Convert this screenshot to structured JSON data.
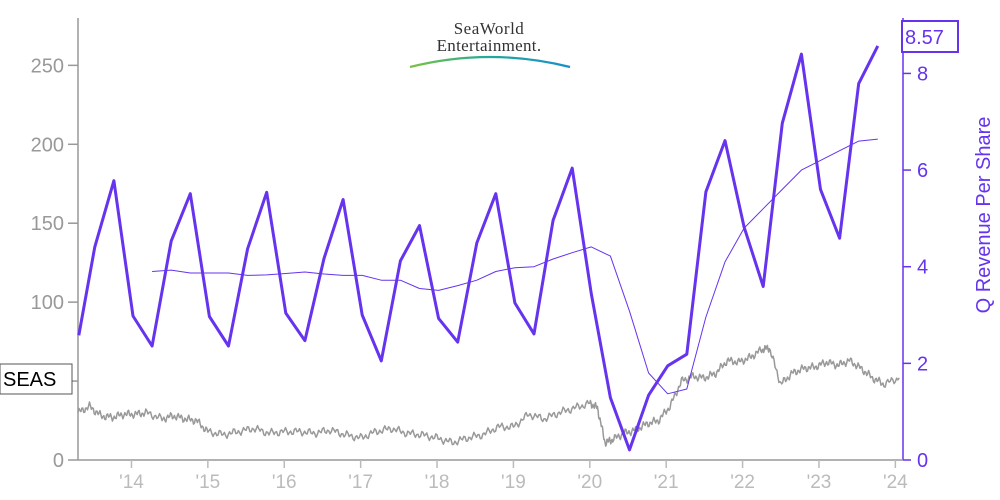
{
  "logo": {
    "line1": "SeaWorld",
    "line2": "Entertainment."
  },
  "ticker_label": "SEAS",
  "last_value_label": "8.57",
  "colors": {
    "price": "#999999",
    "revenue": "#6633ee",
    "axis_left": "#999999",
    "x_ticks": "#bbbbbb"
  },
  "chart_data": {
    "type": "line",
    "xlabel": "",
    "ylabel_left": "",
    "ylabel_right": "Q Revenue Per Share",
    "x_tick_labels": [
      "'14",
      "'15",
      "'16",
      "'17",
      "'18",
      "'19",
      "'20",
      "'21",
      "'22",
      "'23",
      "'24"
    ],
    "x_range": [
      2013.3,
      2024.1
    ],
    "y_left": {
      "ticks": [
        0,
        50,
        100,
        150,
        200,
        250
      ],
      "tick_labels": [
        "0",
        "",
        "100",
        "150",
        "200",
        "250"
      ],
      "range": [
        0,
        280
      ]
    },
    "y_right": {
      "ticks": [
        0,
        2,
        4,
        6,
        8
      ],
      "range": [
        0,
        9.147
      ]
    },
    "series": [
      {
        "name": "",
        "axis": "right",
        "style": "thick",
        "x": [
          2013.31,
          2013.52,
          2013.77,
          2014.02,
          2014.27,
          2014.52,
          2014.77,
          2015.02,
          2015.27,
          2015.52,
          2015.77,
          2016.02,
          2016.27,
          2016.52,
          2016.77,
          2017.02,
          2017.27,
          2017.52,
          2017.77,
          2018.02,
          2018.27,
          2018.52,
          2018.77,
          2019.02,
          2019.27,
          2019.52,
          2019.77,
          2020.02,
          2020.27,
          2020.52,
          2020.77,
          2021.02,
          2021.27,
          2021.52,
          2021.77,
          2022.02,
          2022.27,
          2022.52,
          2022.77,
          2023.02,
          2023.27,
          2023.52,
          2023.77
        ],
        "values": [
          2.58,
          4.41,
          5.78,
          2.98,
          2.36,
          4.53,
          5.51,
          2.97,
          2.36,
          4.37,
          5.54,
          3.04,
          2.47,
          4.17,
          5.39,
          3.0,
          2.05,
          4.12,
          4.85,
          2.93,
          2.44,
          4.49,
          5.51,
          3.25,
          2.61,
          4.96,
          6.04,
          3.44,
          1.29,
          0.21,
          1.34,
          1.95,
          2.19,
          5.55,
          6.61,
          4.82,
          3.59,
          6.97,
          8.4,
          5.6,
          4.59,
          7.79,
          8.57
        ]
      },
      {
        "name": "",
        "axis": "right",
        "style": "thin",
        "x": [
          2014.27,
          2014.52,
          2014.77,
          2015.02,
          2015.27,
          2015.52,
          2015.77,
          2016.02,
          2016.27,
          2016.52,
          2016.77,
          2017.02,
          2017.27,
          2017.52,
          2017.77,
          2018.02,
          2018.27,
          2018.52,
          2018.77,
          2019.02,
          2019.27,
          2019.52,
          2019.77,
          2020.02,
          2020.27,
          2020.52,
          2020.77,
          2021.02,
          2021.27,
          2021.52,
          2021.77,
          2022.02,
          2022.27,
          2022.52,
          2022.77,
          2023.02,
          2023.27,
          2023.52,
          2023.77
        ],
        "values": [
          3.9,
          3.93,
          3.87,
          3.87,
          3.87,
          3.82,
          3.83,
          3.86,
          3.89,
          3.85,
          3.82,
          3.82,
          3.72,
          3.72,
          3.55,
          3.51,
          3.61,
          3.72,
          3.9,
          3.98,
          4.0,
          4.16,
          4.29,
          4.41,
          4.22,
          3.08,
          1.8,
          1.37,
          1.47,
          2.96,
          4.1,
          4.8,
          5.2,
          5.6,
          6.0,
          6.2,
          6.4,
          6.6,
          6.64
        ]
      },
      {
        "name": "",
        "axis": "left",
        "style": "price",
        "x": [
          2013.3,
          2013.45,
          2013.6,
          2013.75,
          2013.9,
          2014.05,
          2014.2,
          2014.4,
          2014.55,
          2014.7,
          2014.85,
          2015.0,
          2015.2,
          2015.4,
          2015.6,
          2015.8,
          2016.0,
          2016.2,
          2016.4,
          2016.6,
          2016.8,
          2017.0,
          2017.2,
          2017.4,
          2017.6,
          2017.8,
          2018.0,
          2018.2,
          2018.4,
          2018.6,
          2018.8,
          2019.0,
          2019.2,
          2019.4,
          2019.6,
          2019.8,
          2020.0,
          2020.1,
          2020.2,
          2020.3,
          2020.45,
          2020.6,
          2020.75,
          2020.9,
          2021.05,
          2021.2,
          2021.35,
          2021.5,
          2021.65,
          2021.8,
          2021.95,
          2022.1,
          2022.25,
          2022.35,
          2022.5,
          2022.65,
          2022.8,
          2022.95,
          2023.1,
          2023.25,
          2023.4,
          2023.55,
          2023.7,
          2023.85,
          2024.05
        ],
        "values": [
          30,
          34,
          28,
          27,
          29,
          29,
          30,
          26,
          28,
          26,
          25,
          18,
          16,
          18,
          20,
          17,
          18,
          18,
          17,
          19,
          16,
          14,
          18,
          20,
          17,
          16,
          14,
          11,
          14,
          16,
          21,
          21,
          29,
          26,
          30,
          33,
          36,
          33,
          11,
          13,
          17,
          19,
          23,
          25,
          34,
          50,
          53,
          52,
          55,
          63,
          62,
          65,
          70,
          71,
          48,
          55,
          58,
          59,
          62,
          60,
          63,
          58,
          52,
          48,
          52
        ]
      }
    ]
  }
}
